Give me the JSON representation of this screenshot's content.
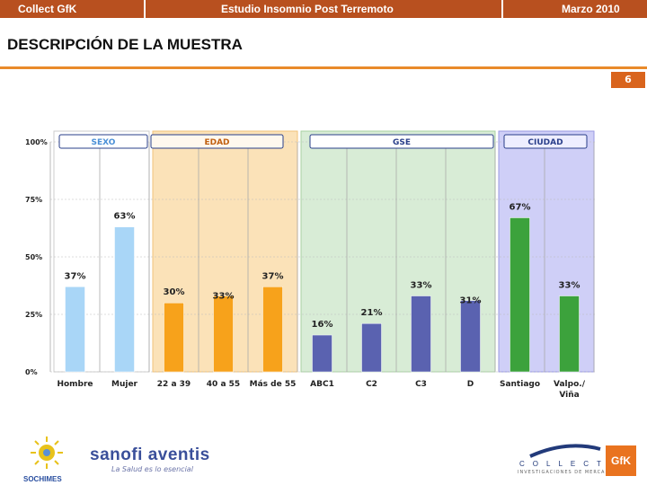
{
  "header": {
    "left": "Collect GfK",
    "center": "Estudio Insomnio Post Terremoto",
    "right": "Marzo 2010"
  },
  "page_title": "DESCRIPCIÓN DE LA MUESTRA",
  "page_number": "6",
  "colors": {
    "header_bg": "#b8501f",
    "rule": "#e98a2a",
    "sexo_bar": "#a9d6f7",
    "edad_bar": "#f7a21b",
    "gse_bar": "#5a62b0",
    "ciudad_bar": "#3ca23c"
  },
  "chart_data": {
    "type": "bar",
    "title": "DESCRIPCIÓN DE LA MUESTRA",
    "xlabel": "",
    "ylabel": "",
    "ylim": [
      0,
      100
    ],
    "y_ticks": [
      "0%",
      "25%",
      "50%",
      "75%",
      "100%"
    ],
    "groups": [
      {
        "name": "SEXO",
        "categories": [
          "Hombre",
          "Mujer"
        ],
        "values": [
          37,
          63
        ],
        "labels": [
          "37%",
          "63%"
        ]
      },
      {
        "name": "EDAD",
        "categories": [
          "22 a 39",
          "40 a 55",
          "Más de 55"
        ],
        "values": [
          30,
          33,
          37
        ],
        "labels": [
          "30%",
          "33%",
          "37%"
        ]
      },
      {
        "name": "GSE",
        "categories": [
          "ABC1",
          "C2",
          "C3",
          "D"
        ],
        "values": [
          16,
          21,
          33,
          31
        ],
        "labels": [
          "16%",
          "21%",
          "33%",
          "31%"
        ]
      },
      {
        "name": "CIUDAD",
        "categories": [
          "Santiago",
          "Valpo./ Viña"
        ],
        "values": [
          67,
          33
        ],
        "labels": [
          "67%",
          "33%"
        ]
      }
    ]
  },
  "logos": {
    "sochimes": "SOCHIMES",
    "sanofi": "sanofi aventis",
    "sanofi_tagline": "La Salud es lo esencial",
    "collect": "COLLECT",
    "collect_sub": "INVESTIGACIONES DE MERCADO",
    "gfk": "GfK"
  }
}
